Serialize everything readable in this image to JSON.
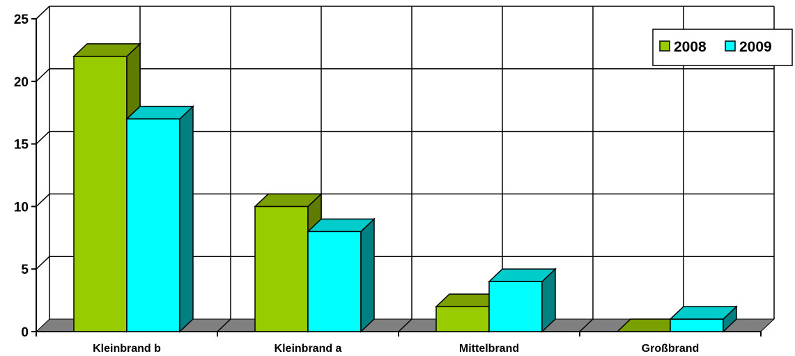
{
  "chart_data": {
    "type": "bar",
    "categories": [
      "Kleinbrand b",
      "Kleinbrand a",
      "Mittelbrand",
      "Großbrand"
    ],
    "series": [
      {
        "name": "2008",
        "values": [
          22,
          10,
          2,
          0
        ]
      },
      {
        "name": "2009",
        "values": [
          17,
          8,
          4,
          1
        ]
      }
    ],
    "y_ticks": [
      "0",
      "5",
      "10",
      "15",
      "20",
      "25"
    ],
    "ylim": [
      0,
      25
    ],
    "grid": true,
    "legend_position": "top-right",
    "three_d": true
  },
  "colors": {
    "series_front": [
      "#99CC00",
      "#00FFFF"
    ],
    "series_top": [
      "#7A9F00",
      "#00CCCC"
    ],
    "series_side": [
      "#5F7B00",
      "#008080"
    ],
    "floor": "#808080",
    "grid": "#000000",
    "background": "#FFFFFF"
  }
}
